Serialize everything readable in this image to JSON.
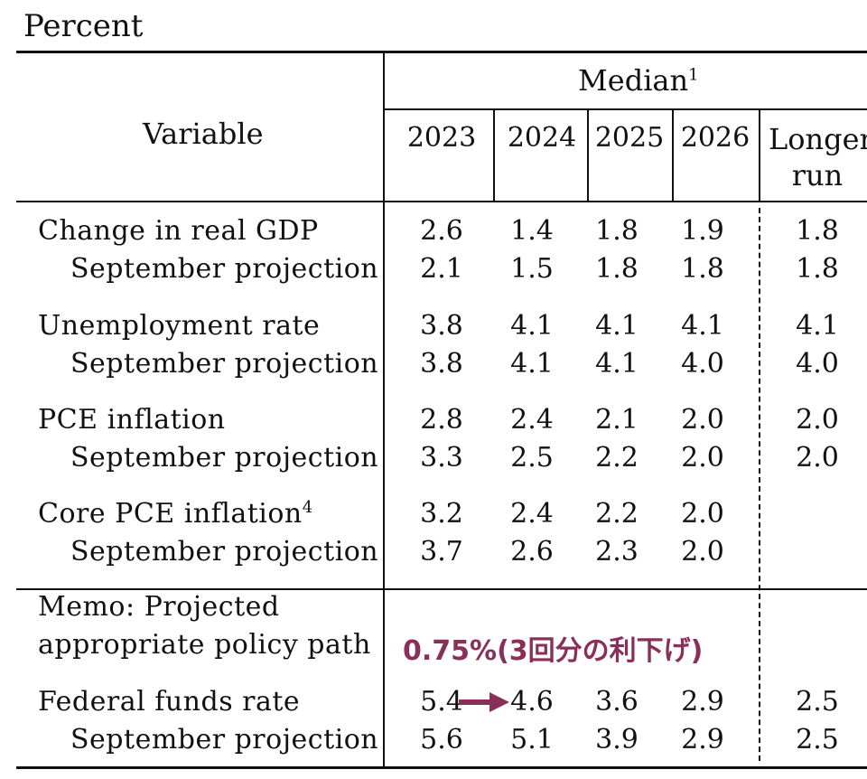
{
  "title": "Percent",
  "header": {
    "variable": "Variable",
    "median": "Median",
    "median_footnote": "1",
    "years": [
      "2023",
      "2024",
      "2025",
      "2026"
    ],
    "longer_run_line1": "Longer",
    "longer_run_line2": "run"
  },
  "rows": [
    {
      "label": "Change in real GDP",
      "values": [
        "2.6",
        "1.4",
        "1.8",
        "1.9",
        "1.8"
      ]
    },
    {
      "label": "September projection",
      "values": [
        "2.1",
        "1.5",
        "1.8",
        "1.8",
        "1.8"
      ]
    },
    {
      "label": "Unemployment rate",
      "values": [
        "3.8",
        "4.1",
        "4.1",
        "4.1",
        "4.1"
      ]
    },
    {
      "label": "September projection",
      "values": [
        "3.8",
        "4.1",
        "4.1",
        "4.0",
        "4.0"
      ]
    },
    {
      "label": "PCE inflation",
      "values": [
        "2.8",
        "2.4",
        "2.1",
        "2.0",
        "2.0"
      ]
    },
    {
      "label": "September projection",
      "values": [
        "3.3",
        "2.5",
        "2.2",
        "2.0",
        "2.0"
      ]
    },
    {
      "label": "Core PCE inflation",
      "footnote": "4",
      "values": [
        "3.2",
        "2.4",
        "2.2",
        "2.0",
        ""
      ]
    },
    {
      "label": "September projection",
      "values": [
        "3.7",
        "2.6",
        "2.3",
        "2.0",
        ""
      ]
    }
  ],
  "memo": {
    "line1": "Memo: Projected",
    "line2": "appropriate policy path",
    "annotation": "0.75%(3回分の利下げ)",
    "rows": [
      {
        "label": "Federal funds rate",
        "values": [
          "5.4",
          "4.6",
          "3.6",
          "2.9",
          "2.5"
        ]
      },
      {
        "label": "September projection",
        "values": [
          "5.6",
          "5.1",
          "3.9",
          "2.9",
          "2.5"
        ]
      }
    ]
  },
  "colors": {
    "annotation": "#8a2f5a",
    "rule": "#111111"
  }
}
